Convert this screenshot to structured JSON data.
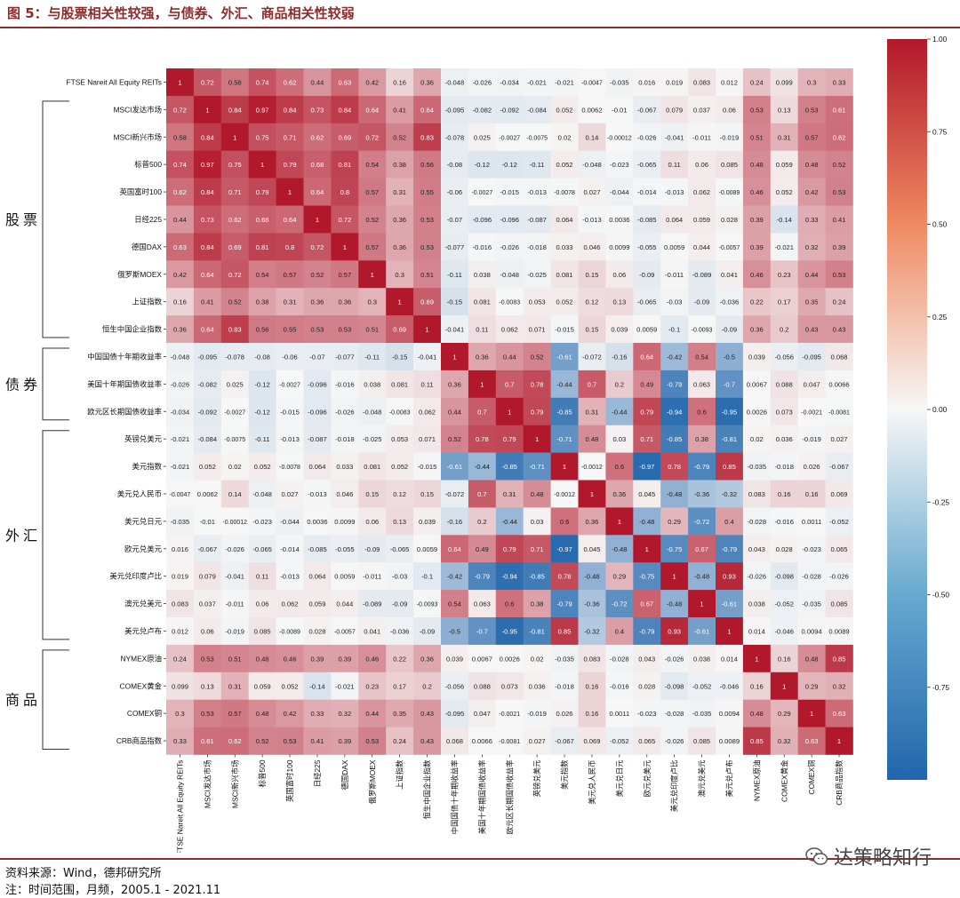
{
  "header": {
    "title": "图 5：与股票相关性较强，与债券、外汇、商品相关性较弱"
  },
  "footer": {
    "source": "资料来源：Wind，德邦研究所",
    "note": "注：时间范围，月频，2005.1 - 2021.11"
  },
  "watermark": {
    "text": "达策略知行",
    "icon": "wechat-icon"
  },
  "colors": {
    "accent": "#8e2b2b",
    "positive": "#b2182b",
    "neutral": "#f7f7f7",
    "negative": "#2166ac"
  },
  "chart_data": {
    "type": "heatmap",
    "title": "",
    "labels": [
      "FTSE Nareit All Equity REITs",
      "MSCI发达市场",
      "MSCI新兴市场",
      "标普500",
      "英国富时100",
      "日经225",
      "德国DAX",
      "俄罗斯MOEX",
      "上证指数",
      "恒生中国企业指数",
      "中国国债十年期收益率",
      "美国十年期国债收益率",
      "欧元区长期国债收益率",
      "英镑兑美元",
      "美元指数",
      "美元兑人民币",
      "美元兑日元",
      "欧元兑美元",
      "美元兑印度卢比",
      "澳元兑美元",
      "美元兑卢布",
      "NYMEX原油",
      "COMEX黄金",
      "COMEX铜",
      "CRB商品指数"
    ],
    "groups": [
      {
        "name": "股票",
        "start": 1,
        "end": 9
      },
      {
        "name": "债券",
        "start": 10,
        "end": 12
      },
      {
        "name": "外汇",
        "start": 13,
        "end": 20
      },
      {
        "name": "商品",
        "start": 21,
        "end": 24
      }
    ],
    "matrix": [
      [
        "1",
        "0.72",
        "0.58",
        "0.74",
        "0.62",
        "0.44",
        "0.63",
        "0.42",
        "0.16",
        "0.36",
        "-0.048",
        "-0.026",
        "-0.034",
        "-0.021",
        "-0.021",
        "-0.0047",
        "-0.035",
        "0.016",
        "0.019",
        "0.083",
        "0.012",
        "0.24",
        "0.099",
        "0.3",
        "0.33"
      ],
      [
        "0.72",
        "1",
        "0.84",
        "0.97",
        "0.84",
        "0.73",
        "0.84",
        "0.64",
        "0.41",
        "0.64",
        "-0.095",
        "-0.082",
        "-0.092",
        "-0.084",
        "0.052",
        "0.0062",
        "-0.01",
        "-0.067",
        "0.079",
        "0.037",
        "0.06",
        "0.53",
        "0.13",
        "0.53",
        "0.61"
      ],
      [
        "0.58",
        "0.84",
        "1",
        "0.75",
        "0.71",
        "0.62",
        "0.69",
        "0.72",
        "0.52",
        "0.83",
        "-0.078",
        "0.025",
        "-0.0027",
        "-0.0075",
        "0.02",
        "0.14",
        "-0.00012",
        "-0.026",
        "-0.041",
        "-0.011",
        "-0.019",
        "0.51",
        "0.31",
        "0.57",
        "0.62"
      ],
      [
        "0.74",
        "0.97",
        "0.75",
        "1",
        "0.79",
        "0.68",
        "0.81",
        "0.54",
        "0.38",
        "0.56",
        "-0.08",
        "-0.12",
        "-0.12",
        "-0.11",
        "0.052",
        "-0.048",
        "-0.023",
        "-0.065",
        "0.11",
        "0.06",
        "0.085",
        "0.48",
        "0.059",
        "0.48",
        "0.52"
      ],
      [
        "0.62",
        "0.84",
        "0.71",
        "0.79",
        "1",
        "0.64",
        "0.8",
        "0.57",
        "0.31",
        "0.55",
        "-0.06",
        "-0.0027",
        "-0.015",
        "-0.013",
        "-0.0078",
        "0.027",
        "-0.044",
        "-0.014",
        "-0.013",
        "0.062",
        "-0.0089",
        "0.46",
        "0.052",
        "0.42",
        "0.53"
      ],
      [
        "0.44",
        "0.73",
        "0.62",
        "0.68",
        "0.64",
        "1",
        "0.72",
        "0.52",
        "0.36",
        "0.53",
        "-0.07",
        "-0.096",
        "-0.096",
        "-0.087",
        "0.064",
        "-0.013",
        "0.0036",
        "-0.085",
        "0.064",
        "0.059",
        "0.028",
        "0.39",
        "-0.14",
        "0.33",
        "0.41"
      ],
      [
        "0.63",
        "0.84",
        "0.69",
        "0.81",
        "0.8",
        "0.72",
        "1",
        "0.57",
        "0.36",
        "0.53",
        "-0.077",
        "-0.016",
        "-0.026",
        "-0.018",
        "0.033",
        "0.046",
        "0.0099",
        "-0.055",
        "0.0059",
        "0.044",
        "-0.0057",
        "0.39",
        "-0.021",
        "0.32",
        "0.39"
      ],
      [
        "0.42",
        "0.64",
        "0.72",
        "0.54",
        "0.57",
        "0.52",
        "0.57",
        "1",
        "0.3",
        "0.51",
        "-0.11",
        "0.038",
        "-0.048",
        "-0.025",
        "0.081",
        "0.15",
        "0.06",
        "-0.09",
        "-0.011",
        "-0.089",
        "0.041",
        "0.46",
        "0.23",
        "0.44",
        "0.53"
      ],
      [
        "0.16",
        "0.41",
        "0.52",
        "0.38",
        "0.31",
        "0.36",
        "0.36",
        "0.3",
        "1",
        "0.69",
        "-0.15",
        "0.081",
        "-0.0083",
        "0.053",
        "0.052",
        "0.12",
        "0.13",
        "-0.065",
        "-0.03",
        "-0.09",
        "-0.036",
        "0.22",
        "0.17",
        "0.35",
        "0.24"
      ],
      [
        "0.36",
        "0.64",
        "0.83",
        "0.56",
        "0.55",
        "0.53",
        "0.53",
        "0.51",
        "0.69",
        "1",
        "-0.041",
        "0.11",
        "0.062",
        "0.071",
        "-0.015",
        "0.15",
        "0.039",
        "0.0059",
        "-0.1",
        "-0.0093",
        "-0.09",
        "0.36",
        "0.2",
        "0.43",
        "0.43"
      ],
      [
        "-0.048",
        "-0.095",
        "-0.078",
        "-0.08",
        "-0.06",
        "-0.07",
        "-0.077",
        "-0.11",
        "-0.15",
        "-0.041",
        "1",
        "0.36",
        "0.44",
        "0.52",
        "-0.61",
        "-0.072",
        "-0.16",
        "0.64",
        "-0.42",
        "0.54",
        "-0.5",
        "0.039",
        "-0.056",
        "-0.095",
        "0.068"
      ],
      [
        "-0.026",
        "-0.082",
        "0.025",
        "-0.12",
        "-0.0027",
        "-0.096",
        "-0.016",
        "0.038",
        "0.081",
        "0.11",
        "0.36",
        "1",
        "0.7",
        "0.78",
        "-0.44",
        "0.7",
        "0.2",
        "0.49",
        "-0.79",
        "0.063",
        "-0.7",
        "0.0067",
        "0.088",
        "0.047",
        "0.0066"
      ],
      [
        "-0.034",
        "-0.092",
        "-0.0027",
        "-0.12",
        "-0.015",
        "-0.096",
        "-0.026",
        "-0.048",
        "-0.0083",
        "0.062",
        "0.44",
        "0.7",
        "1",
        "0.79",
        "-0.85",
        "0.31",
        "-0.44",
        "0.79",
        "-0.94",
        "0.6",
        "-0.95",
        "0.0026",
        "0.073",
        "-0.0021",
        "-0.0081"
      ],
      [
        "-0.021",
        "-0.084",
        "-0.0075",
        "-0.11",
        "-0.013",
        "-0.087",
        "-0.018",
        "-0.025",
        "0.053",
        "0.071",
        "0.52",
        "0.78",
        "0.79",
        "1",
        "-0.71",
        "0.48",
        "0.03",
        "0.71",
        "-0.85",
        "0.38",
        "-0.81",
        "0.02",
        "0.036",
        "-0.019",
        "0.027"
      ],
      [
        "-0.021",
        "0.052",
        "0.02",
        "0.052",
        "-0.0078",
        "0.064",
        "0.033",
        "0.081",
        "0.052",
        "-0.015",
        "-0.61",
        "-0.44",
        "-0.85",
        "-0.71",
        "1",
        "-0.0012",
        "0.6",
        "-0.97",
        "0.78",
        "-0.79",
        "0.85",
        "-0.035",
        "-0.018",
        "0.026",
        "-0.067"
      ],
      [
        "-0.0047",
        "0.0062",
        "0.14",
        "-0.048",
        "0.027",
        "-0.013",
        "0.046",
        "0.15",
        "0.12",
        "0.15",
        "-0.072",
        "0.7",
        "0.31",
        "0.48",
        "-0.0012",
        "1",
        "0.36",
        "0.045",
        "-0.48",
        "-0.36",
        "-0.32",
        "0.083",
        "0.16",
        "0.16",
        "0.069"
      ],
      [
        "-0.035",
        "-0.01",
        "-0.00012",
        "-0.023",
        "-0.044",
        "0.0036",
        "0.0099",
        "0.06",
        "0.13",
        "0.039",
        "-0.16",
        "0.2",
        "-0.44",
        "0.03",
        "0.6",
        "0.36",
        "1",
        "-0.48",
        "0.29",
        "-0.72",
        "0.4",
        "-0.028",
        "-0.016",
        "0.0011",
        "-0.052"
      ],
      [
        "0.016",
        "-0.067",
        "-0.026",
        "-0.065",
        "-0.014",
        "-0.085",
        "-0.055",
        "-0.09",
        "-0.065",
        "0.0059",
        "0.64",
        "0.49",
        "0.79",
        "0.71",
        "-0.97",
        "0.045",
        "-0.48",
        "1",
        "-0.75",
        "0.67",
        "-0.79",
        "0.043",
        "0.028",
        "-0.023",
        "0.065"
      ],
      [
        "0.019",
        "0.079",
        "-0.041",
        "0.11",
        "-0.013",
        "0.064",
        "0.0059",
        "-0.011",
        "-0.03",
        "-0.1",
        "-0.42",
        "-0.79",
        "-0.94",
        "-0.85",
        "0.78",
        "-0.48",
        "0.29",
        "-0.75",
        "1",
        "-0.48",
        "0.93",
        "-0.026",
        "-0.098",
        "-0.028",
        "-0.026"
      ],
      [
        "0.083",
        "0.037",
        "-0.011",
        "0.06",
        "0.062",
        "0.059",
        "0.044",
        "-0.089",
        "-0.09",
        "-0.0093",
        "0.54",
        "0.063",
        "0.6",
        "0.38",
        "-0.79",
        "-0.36",
        "-0.72",
        "0.67",
        "-0.48",
        "1",
        "-0.61",
        "0.038",
        "-0.052",
        "-0.035",
        "0.085"
      ],
      [
        "0.012",
        "0.06",
        "-0.019",
        "0.085",
        "-0.0089",
        "0.028",
        "-0.0057",
        "0.041",
        "-0.036",
        "-0.09",
        "-0.5",
        "-0.7",
        "-0.95",
        "-0.81",
        "0.85",
        "-0.32",
        "0.4",
        "-0.79",
        "0.93",
        "-0.61",
        "1",
        "0.014",
        "-0.046",
        "0.0094",
        "0.0089"
      ],
      [
        "0.24",
        "0.53",
        "0.51",
        "0.48",
        "0.46",
        "0.39",
        "0.39",
        "0.46",
        "0.22",
        "0.36",
        "0.039",
        "0.0067",
        "0.0026",
        "0.02",
        "-0.035",
        "0.083",
        "-0.028",
        "0.043",
        "-0.026",
        "0.038",
        "0.014",
        "1",
        "0.16",
        "0.48",
        "0.85"
      ],
      [
        "0.099",
        "0.13",
        "0.31",
        "0.059",
        "0.052",
        "-0.14",
        "-0.021",
        "0.23",
        "0.17",
        "0.2",
        "-0.056",
        "0.088",
        "0.073",
        "0.036",
        "-0.018",
        "0.16",
        "-0.016",
        "0.028",
        "-0.098",
        "-0.052",
        "-0.046",
        "0.16",
        "1",
        "0.29",
        "0.32"
      ],
      [
        "0.3",
        "0.53",
        "0.57",
        "0.48",
        "0.42",
        "0.33",
        "0.32",
        "0.44",
        "0.35",
        "0.43",
        "-0.095",
        "0.047",
        "-0.0021",
        "-0.019",
        "0.026",
        "0.16",
        "0.0011",
        "-0.023",
        "-0.028",
        "-0.035",
        "0.0094",
        "0.48",
        "0.29",
        "1",
        "0.63"
      ],
      [
        "0.33",
        "0.61",
        "0.62",
        "0.52",
        "0.53",
        "0.41",
        "0.39",
        "0.53",
        "0.24",
        "0.43",
        "0.068",
        "0.0066",
        "-0.0081",
        "0.027",
        "-0.067",
        "0.069",
        "-0.052",
        "0.065",
        "-0.026",
        "0.085",
        "0.0089",
        "0.85",
        "0.32",
        "0.63",
        "1"
      ]
    ],
    "vmin": -1,
    "vmax": 1,
    "colorbar_ticks": [
      "1.00",
      "0.75",
      "0.50",
      "0.25",
      "0.00",
      "-0.25",
      "-0.50",
      "-0.75"
    ],
    "colorbar_values": [
      1.0,
      0.75,
      0.5,
      0.25,
      0.0,
      -0.25,
      -0.5,
      -0.75
    ]
  }
}
